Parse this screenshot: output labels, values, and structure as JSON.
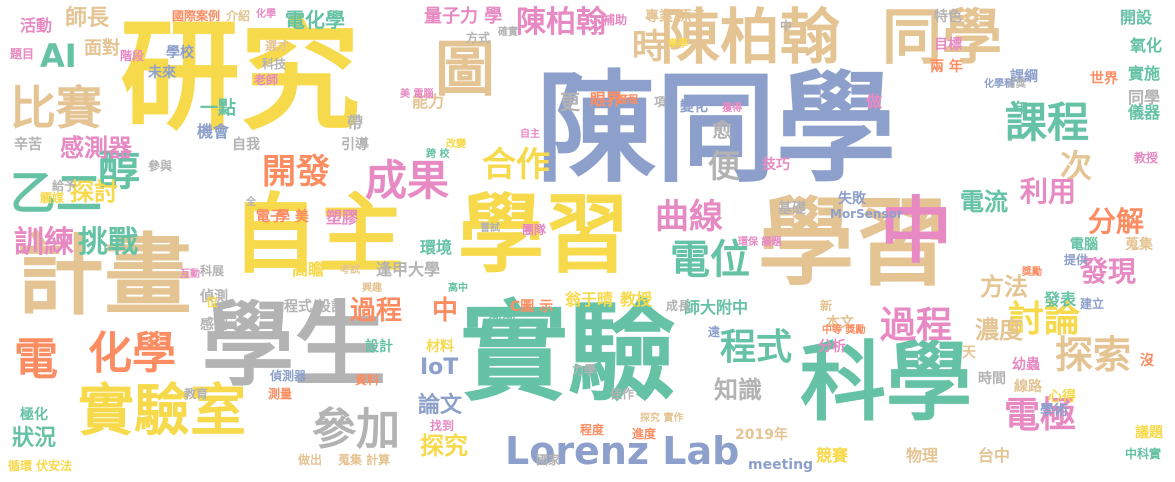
{
  "colors": {
    "yellow": "#F7D94C",
    "blue": "#8DA0CB",
    "green": "#66C2A5",
    "orange": "#FC8D62",
    "pink": "#E78AC3",
    "lime": "#A6D854",
    "tan": "#E5C494",
    "gray": "#B3B3B3"
  },
  "words": [
    {
      "text": "研究",
      "color": "yellow"
    },
    {
      "text": "陳同學",
      "color": "blue"
    },
    {
      "text": "學習",
      "color": "tan"
    },
    {
      "text": "實驗",
      "color": "green"
    },
    {
      "text": "學生",
      "color": "gray"
    },
    {
      "text": "自主",
      "color": "yellow"
    },
    {
      "text": "學習",
      "color": "yellow"
    },
    {
      "text": "計畫",
      "color": "tan"
    },
    {
      "text": "科學",
      "color": "green"
    },
    {
      "text": "陳柏翰",
      "color": "tan"
    },
    {
      "text": "同學",
      "color": "tan"
    },
    {
      "text": "中",
      "color": "pink"
    },
    {
      "text": "圖",
      "color": "tan"
    },
    {
      "text": "實驗室",
      "color": "yellow"
    },
    {
      "text": "比賽",
      "color": "tan"
    },
    {
      "text": "乙二",
      "color": "green"
    },
    {
      "text": "醇",
      "color": "green"
    },
    {
      "text": "課程",
      "color": "green"
    },
    {
      "text": "成果",
      "color": "pink"
    },
    {
      "text": "電位",
      "color": "green"
    },
    {
      "text": "化學",
      "color": "orange"
    },
    {
      "text": "電",
      "color": "orange"
    },
    {
      "text": "參加",
      "color": "gray"
    },
    {
      "text": "探索",
      "color": "tan"
    },
    {
      "text": "Lorenz Lab",
      "color": "blue"
    },
    {
      "text": "陳柏翰",
      "color": "pink"
    },
    {
      "text": "時",
      "color": "tan"
    },
    {
      "text": "AI",
      "color": "green"
    },
    {
      "text": "開發",
      "color": "orange"
    },
    {
      "text": "合作",
      "color": "yellow"
    },
    {
      "text": "曲線",
      "color": "pink"
    },
    {
      "text": "討論",
      "color": "yellow"
    },
    {
      "text": "過程",
      "color": "pink"
    },
    {
      "text": "電極",
      "color": "pink"
    },
    {
      "text": "程式",
      "color": "green"
    },
    {
      "text": "訓練",
      "color": "pink"
    },
    {
      "text": "挑戰",
      "color": "green"
    },
    {
      "text": "感測器",
      "color": "pink"
    },
    {
      "text": "探討",
      "color": "yellow"
    },
    {
      "text": "便",
      "color": "gray"
    },
    {
      "text": "次",
      "color": "tan"
    },
    {
      "text": "利用",
      "color": "pink"
    },
    {
      "text": "分解",
      "color": "orange"
    },
    {
      "text": "發現",
      "color": "pink"
    },
    {
      "text": "電流",
      "color": "green"
    },
    {
      "text": "方法",
      "color": "tan"
    },
    {
      "text": "濃度",
      "color": "tan"
    },
    {
      "text": "過程",
      "color": "orange"
    },
    {
      "text": "中",
      "color": "orange"
    },
    {
      "text": "師長",
      "color": "tan"
    },
    {
      "text": "面對",
      "color": "tan"
    },
    {
      "text": "狀況",
      "color": "green"
    },
    {
      "text": "探究",
      "color": "yellow"
    },
    {
      "text": "論文",
      "color": "blue"
    },
    {
      "text": "知識",
      "color": "gray"
    },
    {
      "text": "IoT",
      "color": "blue"
    },
    {
      "text": "量子力 學",
      "color": "pink"
    },
    {
      "text": "電化學",
      "color": "green"
    },
    {
      "text": "翁于晴",
      "color": "yellow"
    },
    {
      "text": "教授",
      "color": "yellow"
    },
    {
      "text": "師大附中",
      "color": "green"
    },
    {
      "text": "逢甲大學",
      "color": "gray"
    },
    {
      "text": "環境",
      "color": "green"
    },
    {
      "text": "高瞻",
      "color": "yellow"
    },
    {
      "text": "一點",
      "color": "green"
    },
    {
      "text": "機會",
      "color": "blue"
    },
    {
      "text": "更",
      "color": "gray"
    },
    {
      "text": "愈",
      "color": "gray"
    },
    {
      "text": "能力",
      "color": "tan"
    },
    {
      "text": "眼界",
      "color": "orange"
    },
    {
      "text": "活動",
      "color": "pink"
    },
    {
      "text": "學校",
      "color": "blue"
    },
    {
      "text": "未來",
      "color": "blue"
    },
    {
      "text": "實施",
      "color": "green"
    },
    {
      "text": "氧化",
      "color": "green"
    },
    {
      "text": "開設",
      "color": "green"
    },
    {
      "text": "特色",
      "color": "gray"
    },
    {
      "text": "目標",
      "color": "pink"
    },
    {
      "text": "兩 年",
      "color": "orange"
    },
    {
      "text": "課綱",
      "color": "blue"
    },
    {
      "text": "世界",
      "color": "orange"
    },
    {
      "text": "同學",
      "color": "gray"
    },
    {
      "text": "儀器",
      "color": "green"
    },
    {
      "text": "教授",
      "color": "pink"
    },
    {
      "text": "發表",
      "color": "green"
    },
    {
      "text": "電腦",
      "color": "green"
    },
    {
      "text": "蒐集",
      "color": "tan"
    },
    {
      "text": "時間",
      "color": "gray"
    },
    {
      "text": "分析",
      "color": "pink"
    },
    {
      "text": "物理",
      "color": "tan"
    },
    {
      "text": "台中",
      "color": "tan"
    },
    {
      "text": "競賽",
      "color": "yellow"
    },
    {
      "text": "meeting",
      "color": "blue"
    },
    {
      "text": "2019年",
      "color": "tan"
    },
    {
      "text": "失敗",
      "color": "blue"
    },
    {
      "text": "MorSensor",
      "color": "blue"
    },
    {
      "text": "基礎",
      "color": "gray"
    },
    {
      "text": "技巧",
      "color": "pink"
    },
    {
      "text": "變化",
      "color": "blue"
    },
    {
      "text": "塑膠",
      "color": "pink"
    },
    {
      "text": "學 美",
      "color": "orange"
    },
    {
      "text": "電子",
      "color": "orange"
    },
    {
      "text": "帶",
      "color": "gray"
    },
    {
      "text": "引導",
      "color": "gray"
    },
    {
      "text": "自我",
      "color": "gray"
    },
    {
      "text": "老師",
      "color": "pink"
    },
    {
      "text": "科技",
      "color": "gray"
    },
    {
      "text": "選才",
      "color": "tan"
    },
    {
      "text": "介紹",
      "color": "tan"
    },
    {
      "text": "國際",
      "color": "orange"
    },
    {
      "text": "案例",
      "color": "orange"
    },
    {
      "text": "化學",
      "color": "pink"
    },
    {
      "text": "專業 原子",
      "color": "tan"
    },
    {
      "text": "補助",
      "color": "pink"
    },
    {
      "text": "方式",
      "color": "gray"
    },
    {
      "text": "確實",
      "color": "gray"
    },
    {
      "text": "本文",
      "color": "tan"
    },
    {
      "text": "新",
      "color": "tan"
    },
    {
      "text": "成長",
      "color": "gray"
    },
    {
      "text": "漸漸",
      "color": "green"
    },
    {
      "text": "設計",
      "color": "green"
    },
    {
      "text": "材料",
      "color": "yellow"
    },
    {
      "text": "感測",
      "color": "gray"
    },
    {
      "text": "偵測",
      "color": "gray"
    },
    {
      "text": "科展",
      "color": "gray"
    },
    {
      "text": "程式 設計",
      "color": "gray"
    },
    {
      "text": "偵測器",
      "color": "blue"
    },
    {
      "text": "測量",
      "color": "orange"
    },
    {
      "text": "資料",
      "color": "orange"
    },
    {
      "text": "教育",
      "color": "gray"
    },
    {
      "text": "極化",
      "color": "green"
    },
    {
      "text": "找到",
      "color": "pink"
    },
    {
      "text": "做出",
      "color": "tan"
    },
    {
      "text": "蒐集 計算",
      "color": "tan"
    },
    {
      "text": "國家",
      "color": "gray"
    },
    {
      "text": "進度",
      "color": "orange"
    },
    {
      "text": "程度",
      "color": "orange"
    },
    {
      "text": "佳作",
      "color": "gray"
    },
    {
      "text": "探究 實作",
      "color": "tan"
    },
    {
      "text": "力學",
      "color": "gray"
    },
    {
      "text": "幼蟲",
      "color": "pink"
    },
    {
      "text": "線路",
      "color": "tan"
    },
    {
      "text": "心得",
      "color": "yellow"
    },
    {
      "text": "學術",
      "color": "blue"
    },
    {
      "text": "議題",
      "color": "yellow"
    },
    {
      "text": "中科實",
      "color": "green"
    },
    {
      "text": "辛苦",
      "color": "gray"
    },
    {
      "text": "參與",
      "color": "gray"
    },
    {
      "text": "給予",
      "color": "gray"
    },
    {
      "text": "觸媒",
      "color": "yellow"
    },
    {
      "text": "題目",
      "color": "pink"
    },
    {
      "text": "循環 伏安法",
      "color": "yellow"
    },
    {
      "text": "階段",
      "color": "pink"
    },
    {
      "text": "做",
      "color": "pink"
    },
    {
      "text": "年",
      "color": "green"
    },
    {
      "text": "提供",
      "color": "blue"
    },
    {
      "text": "建立",
      "color": "blue"
    },
    {
      "text": "獎勵",
      "color": "orange"
    },
    {
      "text": "中等 獎勵",
      "color": "orange"
    },
    {
      "text": "天",
      "color": "tan"
    },
    {
      "text": "沒",
      "color": "orange"
    },
    {
      "text": "中",
      "color": "gray"
    },
    {
      "text": "C圖 示",
      "color": "orange"
    },
    {
      "text": "互動",
      "color": "pink"
    },
    {
      "text": "嘗試",
      "color": "gray"
    },
    {
      "text": "團隊",
      "color": "pink"
    },
    {
      "text": "環保 議題",
      "color": "pink"
    },
    {
      "text": "考試",
      "color": "tan"
    },
    {
      "text": "興趣",
      "color": "tan"
    },
    {
      "text": "高中",
      "color": "green"
    },
    {
      "text": "位",
      "color": "yellow"
    },
    {
      "text": "項",
      "color": "gray"
    },
    {
      "text": "遠",
      "color": "blue"
    },
    {
      "text": "跨 校",
      "color": "green"
    },
    {
      "text": "改變",
      "color": "yellow"
    },
    {
      "text": "全",
      "color": "gray"
    },
    {
      "text": "首獎",
      "color": "gray"
    },
    {
      "text": "化學科",
      "color": "blue"
    },
    {
      "text": "美 電腦",
      "color": "pink"
    },
    {
      "text": "歷程",
      "color": "orange"
    },
    {
      "text": "樂學",
      "color": "yellow"
    },
    {
      "text": "自主",
      "color": "pink"
    },
    {
      "text": "獲得",
      "color": "pink"
    }
  ]
}
